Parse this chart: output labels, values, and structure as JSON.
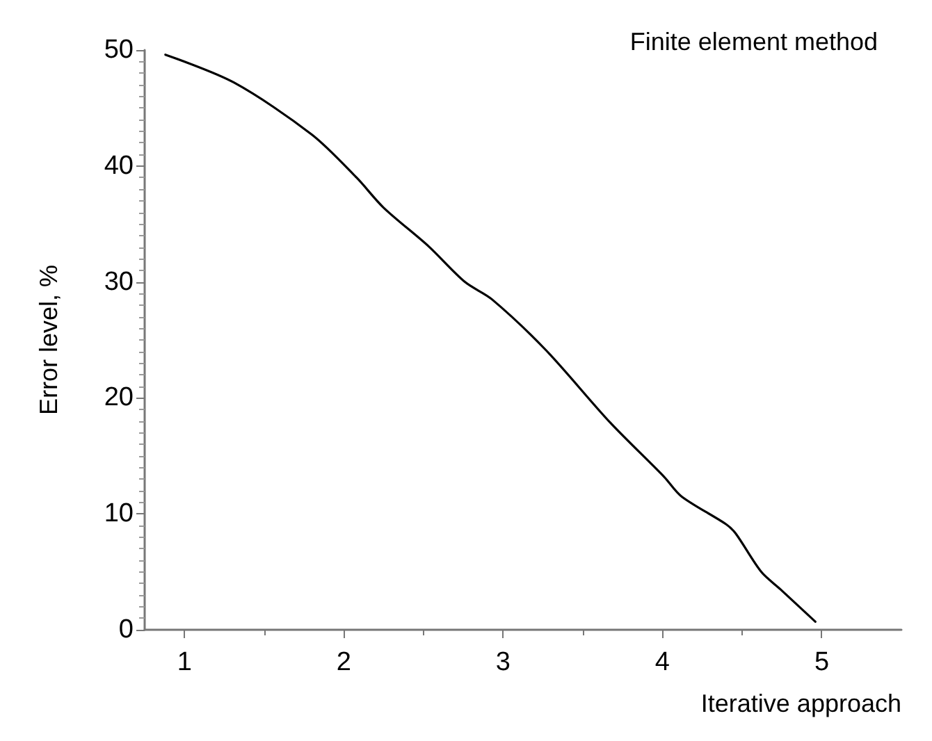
{
  "chart_data": {
    "type": "line",
    "title": "Finite element method",
    "xlabel": "Iterative approach",
    "ylabel": "Error level, %",
    "xlim": [
      0.75,
      5.5
    ],
    "xticks": [
      1,
      2,
      3,
      4,
      5
    ],
    "ylim": [
      0,
      50
    ],
    "yticks": [
      0,
      10,
      20,
      30,
      40,
      50
    ],
    "grid": false,
    "marker": "none",
    "line_style": "solid",
    "series": [
      {
        "color": "#000000",
        "x": [
          0.88,
          1.31,
          1.8,
          2.08,
          2.25,
          2.53,
          2.76,
          2.93,
          3.27,
          3.67,
          4.01,
          4.12,
          4.4,
          4.46,
          4.62,
          4.74,
          4.96
        ],
        "values": [
          49.6,
          47.2,
          42.7,
          39.0,
          36.4,
          33.1,
          30.0,
          28.5,
          24.1,
          17.9,
          13.2,
          11.5,
          9.1,
          8.3,
          5.0,
          3.5,
          0.7
        ]
      }
    ]
  }
}
